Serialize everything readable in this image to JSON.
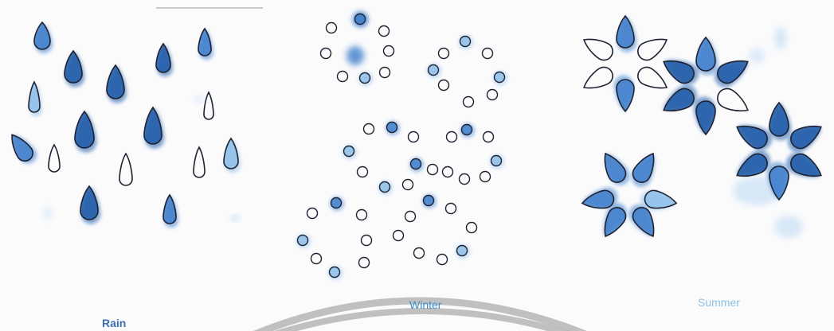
{
  "labels": {
    "rain": "Rain",
    "winter": "Winter",
    "summer": "Summer"
  },
  "colors": {
    "ink": "#1e2230",
    "blue_dark": "#1f5aa8",
    "blue_mid": "#3f7fcc",
    "blue_light": "#8fbfea",
    "blue_faint": "#c9e0f5",
    "arc": "#b5b5b5",
    "rain_label": "#3f6fb0",
    "winter_label": "#3d8fc8",
    "summer_label": "#8cc0e6"
  },
  "panels": [
    {
      "name": "rain-panel",
      "pattern": "raindrops"
    },
    {
      "name": "winter-panel",
      "pattern": "dot-rings"
    },
    {
      "name": "summer-panel",
      "pattern": "petal-flowers"
    }
  ]
}
